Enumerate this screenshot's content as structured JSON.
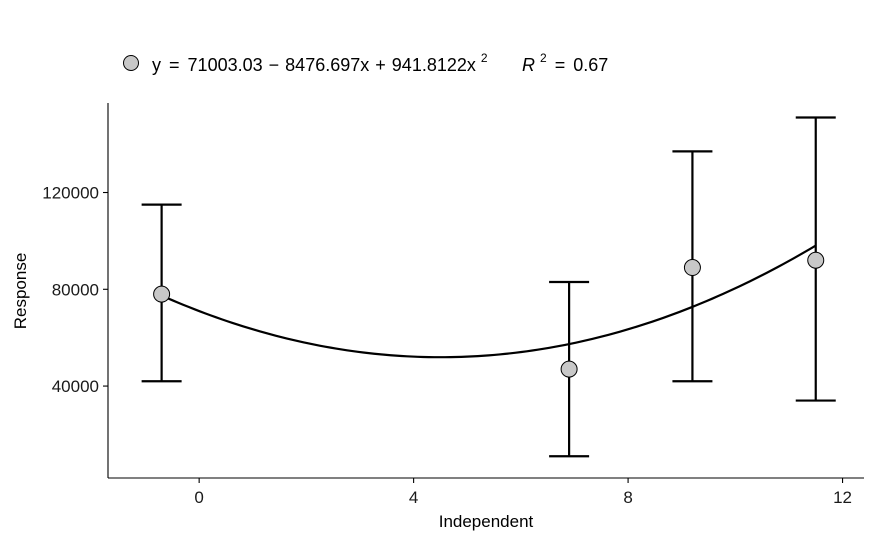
{
  "chart_data": {
    "type": "scatter",
    "xlabel": "Independent",
    "ylabel": "Response",
    "xlim": [
      -1.7,
      12.4
    ],
    "ylim": [
      2000,
      157000
    ],
    "x_ticks": [
      0,
      4,
      8,
      12
    ],
    "x_tick_labels": [
      "0",
      "4",
      "8",
      "12"
    ],
    "y_ticks": [
      40000,
      80000,
      120000
    ],
    "y_tick_labels": [
      "40000",
      "80000",
      "120000"
    ],
    "grid": false,
    "legend_position": "top-left",
    "points": [
      {
        "x": -0.7,
        "y": 78000,
        "ymin": 42000,
        "ymax": 115000
      },
      {
        "x": 6.9,
        "y": 47000,
        "ymin": 11000,
        "ymax": 83000
      },
      {
        "x": 9.2,
        "y": 89000,
        "ymin": 42000,
        "ymax": 137000
      },
      {
        "x": 11.5,
        "y": 92000,
        "ymin": 34000,
        "ymax": 151000
      }
    ],
    "fit": {
      "type": "quadratic",
      "coefficients": [
        71003.03,
        -8476.697,
        941.8122
      ],
      "x_range": [
        -0.7,
        11.5
      ],
      "r2": 0.67
    },
    "legend": {
      "equation_lhs": "y",
      "equals": "=",
      "intercept": "71003.03",
      "minus": "−",
      "linear_term": "8476.697x",
      "plus": "+",
      "quadratic_term": "941.8122x",
      "exponent": "2",
      "r2_symbol": "R",
      "r2_exponent": "2",
      "r2_value": "0.67"
    },
    "colors": {
      "point_fill": "#c8c8c8",
      "point_stroke": "#000000",
      "line": "#000000",
      "axis": "#000000"
    }
  }
}
